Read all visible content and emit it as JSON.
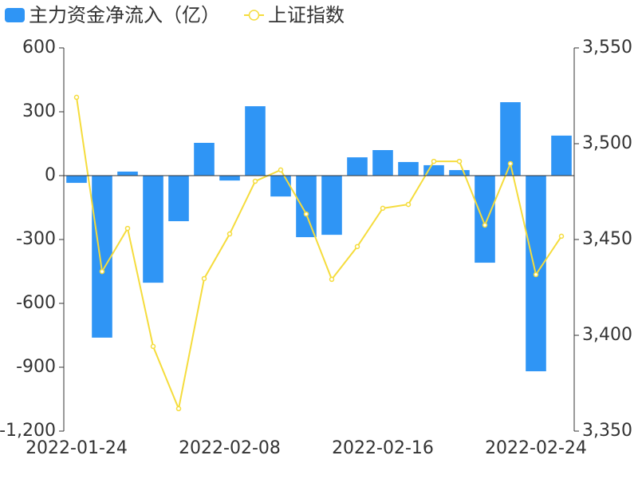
{
  "chart_data": {
    "type": "bar-line",
    "categories": [
      "2022-01-24",
      null,
      null,
      null,
      null,
      null,
      "2022-02-08",
      null,
      null,
      null,
      null,
      null,
      "2022-02-16",
      null,
      null,
      null,
      null,
      null,
      "2022-02-24",
      null
    ],
    "series": [
      {
        "name": "主力资金净流入（亿）",
        "type": "bar",
        "color": "#2f95f5",
        "values": [
          -34,
          -761,
          19,
          -503,
          -214,
          154,
          -23,
          326,
          -98,
          -289,
          -278,
          86,
          120,
          64,
          49,
          26,
          -409,
          345,
          -919,
          188
        ]
      },
      {
        "name": "上证指数",
        "type": "line",
        "axis": "y2",
        "color": "#f5dc3c",
        "values": [
          3524.2,
          3433.3,
          3455.8,
          3394.2,
          3361.7,
          3429.6,
          3452.9,
          3480.4,
          3486.3,
          3463.3,
          3429.2,
          3446.3,
          3466.3,
          3468.3,
          3490.8,
          3490.8,
          3457.5,
          3489.6,
          3431.7,
          3451.7
        ]
      }
    ],
    "ylim": [
      -1200,
      600
    ],
    "yticks": [
      {
        "value": -1200,
        "label": "-1,200"
      },
      -900,
      -600,
      -300,
      0,
      300,
      600
    ],
    "y2lim": [
      3350,
      3550
    ],
    "y2ticks": [
      {
        "value": 3350,
        "label": "3,350"
      },
      {
        "value": 3400,
        "label": "3,400"
      },
      {
        "value": 3450,
        "label": "3,450"
      },
      {
        "value": 3500,
        "label": "3,500"
      },
      {
        "value": 3550,
        "label": "3,550"
      }
    ]
  }
}
